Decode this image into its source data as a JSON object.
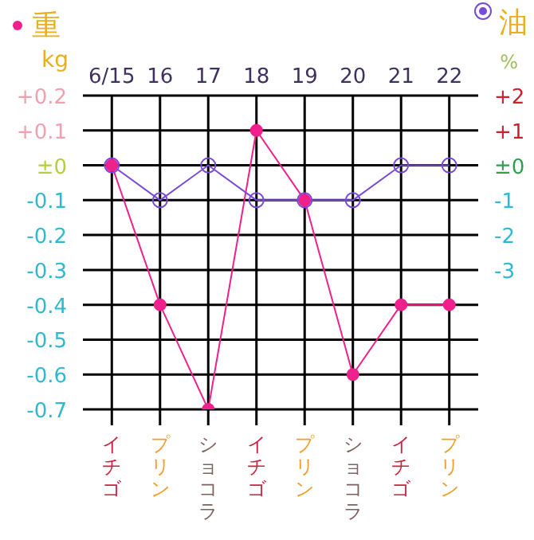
{
  "chart_data": {
    "type": "line",
    "categories": [
      "6/15",
      "16",
      "17",
      "18",
      "19",
      "20",
      "21",
      "22"
    ],
    "series": [
      {
        "name": "重",
        "color": "#f0208c",
        "values": [
          0,
          -0.4,
          -0.7,
          0.1,
          -0.1,
          -0.6,
          -0.4,
          -0.4
        ]
      },
      {
        "name": "油",
        "color": "#7a4ad8",
        "axis": "y2",
        "values": [
          0,
          -1,
          0,
          -1,
          -1,
          -1,
          0,
          0
        ]
      }
    ],
    "ylabel": "kg",
    "y2label": "%",
    "ylim": [
      -0.7,
      0.2
    ],
    "yticks": [
      {
        "value": 0.2,
        "label": "+0.2"
      },
      {
        "value": 0.1,
        "label": "+0.1"
      },
      {
        "value": 0,
        "label": "±0"
      },
      -0.1,
      -0.2,
      -0.3,
      -0.4,
      -0.5,
      -0.6,
      -0.7
    ],
    "y2lim": [
      -7,
      2
    ],
    "y2ticks": [
      {
        "value": 2,
        "label": "+2"
      },
      {
        "value": 1,
        "label": "+1"
      },
      {
        "value": 0,
        "label": "±0"
      },
      -1,
      -2,
      -3
    ],
    "annotations": [
      {
        "text": "イチゴ",
        "x": "6/15"
      },
      {
        "text": "プリン",
        "x": "16"
      },
      {
        "text": "ショコラ",
        "x": "17"
      },
      {
        "text": "イチゴ",
        "x": "18"
      },
      {
        "text": "プリン",
        "x": "19"
      },
      {
        "text": "ショコラ",
        "x": "20"
      },
      {
        "text": "イチゴ",
        "x": "21"
      },
      {
        "text": "プリン",
        "x": "22"
      }
    ],
    "grid": true,
    "legend": "top",
    "marker": "circle",
    "line_style": "solid"
  }
}
